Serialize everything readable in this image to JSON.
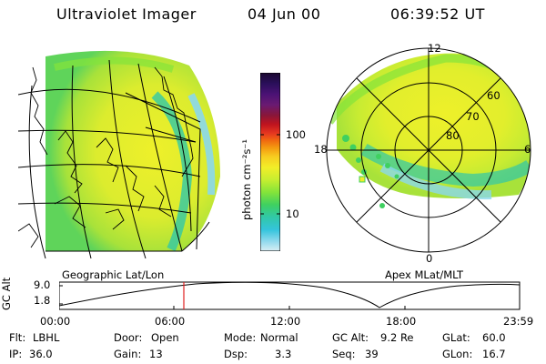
{
  "header": {
    "title": "Ultraviolet Imager",
    "date": "04 Jun 00",
    "time": "06:39:52 UT"
  },
  "globe_panel": {
    "label": "Geographic Lat/Lon"
  },
  "polar_panel": {
    "label": "Apex MLat/MLT",
    "mlt_labels": {
      "top": "12",
      "right": "6",
      "bottom": "0",
      "left": "18"
    },
    "lat_labels": [
      "60",
      "70",
      "80"
    ]
  },
  "colorbar": {
    "unit_label": "photon cm⁻²s⁻¹",
    "ticks": [
      "100",
      "10"
    ],
    "colors": [
      "#1a0830",
      "#2a0f5a",
      "#4b1275",
      "#6a1a72",
      "#8a1638",
      "#c0141e",
      "#e63820",
      "#f06a10",
      "#f49a10",
      "#f7cc20",
      "#f2ee28",
      "#c6ee30",
      "#84e43a",
      "#3fd060",
      "#31c8a8",
      "#34c4dc",
      "#8ad8ec",
      "#d9eef4"
    ]
  },
  "altitude_plot": {
    "ylabel": "GC Alt",
    "y_ticks": [
      "9.0",
      "1.8"
    ],
    "x_ticks": [
      "00:00",
      "06:00",
      "12:00",
      "18:00",
      "23:59"
    ],
    "marker_time": "06:39:52",
    "marker_color": "#e02020"
  },
  "info": {
    "flt": {
      "label": "Flt:",
      "value": "LBHL"
    },
    "ip": {
      "label": "IP:",
      "value": "36.0"
    },
    "door": {
      "label": "Door:",
      "value": "Open"
    },
    "gain": {
      "label": "Gain:",
      "value": "13"
    },
    "mode": {
      "label": "Mode:",
      "value": "Normal"
    },
    "dsp": {
      "label": "Dsp:",
      "value": "3.3"
    },
    "gcalt": {
      "label": "GC Alt:",
      "value": "9.2 Re"
    },
    "seq": {
      "label": "Seq:",
      "value": "39"
    },
    "glat": {
      "label": "GLat:",
      "value": "60.0"
    },
    "glon": {
      "label": "GLon:",
      "value": "16.7"
    }
  }
}
